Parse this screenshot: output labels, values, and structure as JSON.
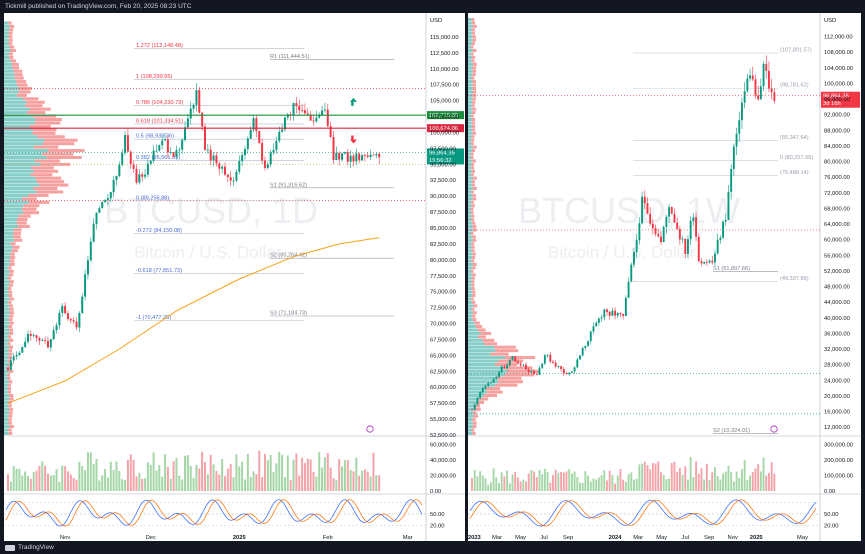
{
  "header": {
    "text": "Tickmill published on TradingView.com, Feb 20, 2025 08:23 UTC"
  },
  "footer": {
    "brand": "TradingView",
    "logo_icon": "tradingview-logo-icon"
  },
  "colors": {
    "up": "#089981",
    "down": "#f23645",
    "ma": "#f7a21b",
    "fib": "#4a6bd6",
    "vp_up": "#26a69a",
    "vp_down": "#ef5350",
    "grid": "#e0e3eb",
    "level_green": "#1b8f3a",
    "level_red": "#d7263d"
  },
  "chart_data": [
    {
      "type": "candlestick",
      "watermark": {
        "symbol": "BTCUSD, 1D",
        "description": "Bitcoin / U.S. Dollar"
      },
      "currency": "USD",
      "ylim": [
        52500,
        117500
      ],
      "y_ticks": [
        "115,000.00",
        "112,500.00",
        "110,000.00",
        "107,500.00",
        "105,000.00",
        "102,500.00",
        "100,000.00",
        "97,500.00",
        "95,000.00",
        "92,500.00",
        "90,000.00",
        "87,500.00",
        "85,000.00",
        "82,500.00",
        "80,000.00",
        "77,500.00",
        "75,000.00",
        "72,500.00",
        "70,000.00",
        "67,500.00",
        "65,000.00",
        "62,500.00",
        "60,000.00",
        "57,500.00",
        "55,000.00",
        "52,500.00"
      ],
      "x_labels": [
        "Nov",
        "Dec",
        "2025",
        "Feb",
        "Mar"
      ],
      "x_label_dates": [
        "2024-11-01",
        "2024-12-01",
        "2025-01-01",
        "2025-02-01",
        "2025-03-01"
      ],
      "x_range": [
        "2024-10-12",
        "2025-03-06"
      ],
      "anchors": [
        [
          "2024-10-12",
          63000
        ],
        [
          "2024-10-20",
          68500
        ],
        [
          "2024-10-26",
          66500
        ],
        [
          "2024-10-31",
          72500
        ],
        [
          "2024-11-05",
          69000
        ],
        [
          "2024-11-12",
          88000
        ],
        [
          "2024-11-17",
          90500
        ],
        [
          "2024-11-22",
          99000
        ],
        [
          "2024-11-26",
          92000
        ],
        [
          "2024-12-05",
          98500
        ],
        [
          "2024-12-10",
          96500
        ],
        [
          "2024-12-17",
          106500
        ],
        [
          "2024-12-20",
          97000
        ],
        [
          "2024-12-30",
          92500
        ],
        [
          "2025-01-06",
          102000
        ],
        [
          "2025-01-10",
          94500
        ],
        [
          "2025-01-20",
          104500
        ],
        [
          "2025-01-26",
          102000
        ],
        [
          "2025-01-31",
          104000
        ],
        [
          "2025-02-03",
          96500
        ],
        [
          "2025-02-09",
          96000
        ],
        [
          "2025-02-19",
          96800
        ]
      ],
      "last_price": {
        "value": 96864.35,
        "label": "96,864.35",
        "countdown": "15:56:32"
      },
      "ma_line": {
        "name": "MA",
        "points": [
          [
            "2024-10-12",
            57500
          ],
          [
            "2024-11-01",
            61000
          ],
          [
            "2024-11-20",
            66000
          ],
          [
            "2024-12-10",
            72000
          ],
          [
            "2025-01-01",
            77000
          ],
          [
            "2025-01-20",
            80500
          ],
          [
            "2025-02-05",
            82500
          ],
          [
            "2025-02-19",
            83500
          ]
        ]
      },
      "fib_levels": [
        {
          "label": "1.272 (113,148.48)",
          "value": 113148.48
        },
        {
          "label": "1 (108,299.95)",
          "value": 108299.95
        },
        {
          "label": "0.786 (104,230.73)",
          "value": 104230.73
        },
        {
          "label": "0.618 (101,334.51)",
          "value": 101334.51
        },
        {
          "label": "0.5 (98,939.36)",
          "value": 98939.36
        },
        {
          "label": "0.382 (95,561.05)",
          "value": 95561.05
        },
        {
          "label": "0 (89,256.88)",
          "value": 89256.88
        },
        {
          "label": "-0.272 (84,150.08)",
          "value": 84150.08
        },
        {
          "label": "-0.618 (77,851.73)",
          "value": 77851.73
        },
        {
          "label": "-1 (70,477.25)",
          "value": 70477.25
        }
      ],
      "annotations": [
        {
          "label": "R1 (111,444.51)",
          "value": 111444.51
        },
        {
          "label": "S1 (91,316.62)",
          "value": 91316.62
        },
        {
          "label": "S2 (80,264.42)",
          "value": 80264.42
        },
        {
          "label": "S3 (71,184.73)",
          "value": 71184.73
        }
      ],
      "key_levels": [
        {
          "label": "102,719.30",
          "value": 102719.3,
          "color": "green"
        },
        {
          "label": "100,674.06",
          "value": 100674.06,
          "color": "red"
        },
        {
          "label": "95,000.00",
          "value": 95000.0,
          "color": "olive"
        }
      ],
      "dotted_levels": [
        106900,
        89300
      ],
      "volume": {
        "ylim": [
          0,
          70000
        ],
        "y_ticks": [
          "60,000.00",
          "40,000.00",
          "20,000.00",
          "0.00"
        ]
      },
      "oscillator": {
        "ylim": [
          0,
          100
        ],
        "y_ticks": [
          "50.00",
          "20.00"
        ]
      }
    },
    {
      "type": "candlestick",
      "watermark": {
        "symbol": "BTCUSD, 1W",
        "description": "Bitcoin / U.S. Dollar"
      },
      "currency": "USD",
      "ylim": [
        10000,
        116000
      ],
      "y_ticks": [
        "112,000.00",
        "108,000.00",
        "104,000.00",
        "100,000.00",
        "96,000.00",
        "92,000.00",
        "88,000.00",
        "84,000.00",
        "80,000.00",
        "76,000.00",
        "72,000.00",
        "68,000.00",
        "64,000.00",
        "60,000.00",
        "56,000.00",
        "52,000.00",
        "48,000.00",
        "44,000.00",
        "40,000.00",
        "36,000.00",
        "32,000.00",
        "28,000.00",
        "24,000.00",
        "20,000.00",
        "16,000.00",
        "12,000.00"
      ],
      "x_labels": [
        "2023",
        "Mar",
        "May",
        "Jul",
        "Sep",
        "2024",
        "Mar",
        "May",
        "Jul",
        "Sep",
        "Nov",
        "2025",
        "May"
      ],
      "x_label_dates": [
        "2023-01-01",
        "2023-03-01",
        "2023-05-01",
        "2023-07-01",
        "2023-09-01",
        "2024-01-01",
        "2024-03-01",
        "2024-05-01",
        "2024-07-01",
        "2024-09-01",
        "2024-11-01",
        "2025-01-01",
        "2025-05-01"
      ],
      "x_range": [
        "2022-12-26",
        "2025-06-05"
      ],
      "anchors": [
        [
          "2022-12-26",
          16600
        ],
        [
          "2023-01-16",
          21000
        ],
        [
          "2023-02-20",
          24500
        ],
        [
          "2023-03-13",
          27000
        ],
        [
          "2023-04-10",
          30000
        ],
        [
          "2023-05-15",
          27000
        ],
        [
          "2023-06-12",
          25500
        ],
        [
          "2023-07-03",
          30500
        ],
        [
          "2023-08-21",
          26000
        ],
        [
          "2023-09-11",
          26000
        ],
        [
          "2023-10-23",
          34500
        ],
        [
          "2023-12-04",
          42000
        ],
        [
          "2024-01-22",
          40000
        ],
        [
          "2024-02-26",
          61000
        ],
        [
          "2024-03-11",
          70000
        ],
        [
          "2024-04-29",
          59000
        ],
        [
          "2024-05-20",
          69000
        ],
        [
          "2024-07-01",
          57000
        ],
        [
          "2024-07-22",
          67000
        ],
        [
          "2024-08-05",
          55000
        ],
        [
          "2024-09-09",
          54000
        ],
        [
          "2024-10-14",
          66000
        ],
        [
          "2024-11-11",
          89000
        ],
        [
          "2024-12-16",
          103000
        ],
        [
          "2025-01-06",
          94000
        ],
        [
          "2025-01-20",
          104000
        ],
        [
          "2025-02-10",
          97000
        ],
        [
          "2025-02-17",
          96800
        ]
      ],
      "last_price": {
        "value": 96864.35,
        "label": "96,864.35",
        "countdown": "3d 16h"
      },
      "fib_levels": [
        {
          "label": "(107,801.57)",
          "value": 107801.57
        },
        {
          "label": "(98,781.62)",
          "value": 98781.62
        },
        {
          "label": "(85,347.64)",
          "value": 85347.64
        },
        {
          "label": "0 (80,257.65)",
          "value": 80257.65
        },
        {
          "label": "(76,488.14)",
          "value": 76488.14
        },
        {
          "label": "(49,337.88)",
          "value": 49337.88
        }
      ],
      "annotations": [
        {
          "label": "S1 (51,897.66)",
          "value": 51897.66
        },
        {
          "label": "S2 (10,324.01)",
          "value": 10324.01
        }
      ],
      "dotted_levels": [
        62500,
        25800,
        15400
      ],
      "volume": {
        "ylim": [
          0,
          350000
        ],
        "y_ticks": [
          "300,000.00",
          "200,000.00",
          "100,000.00",
          "0.00"
        ]
      },
      "oscillator": {
        "ylim": [
          0,
          100
        ],
        "y_ticks": [
          "50.00",
          "20.00"
        ]
      }
    }
  ]
}
